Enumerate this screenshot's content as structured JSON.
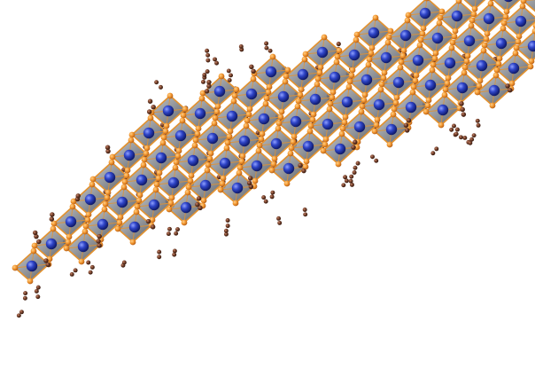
{
  "image": {
    "subject": "perovskite-lattice",
    "colors": {
      "background": "#ffffff",
      "octahedron_fill": "#7a7f86",
      "octahedron_edge": "#e3922f",
      "halide_atom": "#f2962e",
      "metal_atom": "#2438b8",
      "organic_atom": "#6b3a26",
      "organic_atom_highlight": "#a05a3c"
    },
    "lattice": {
      "rows": 8,
      "cols": 10
    }
  }
}
